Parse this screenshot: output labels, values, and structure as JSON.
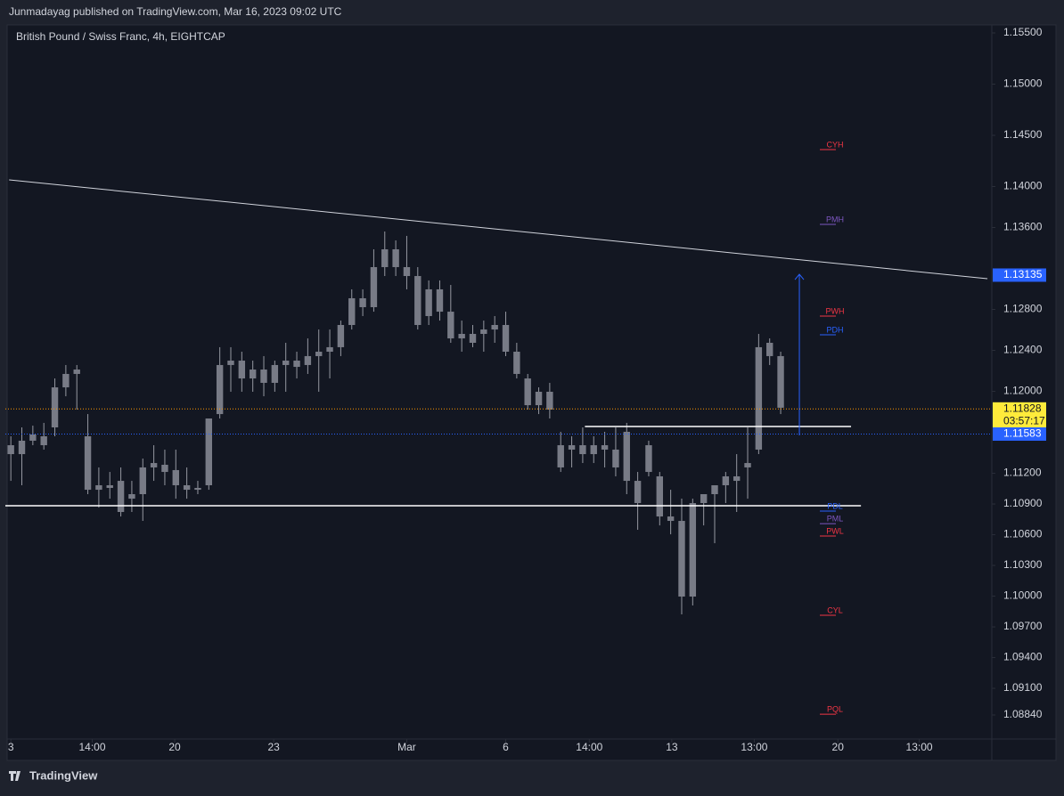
{
  "header": {
    "published": "Junmadayag published on TradingView.com, Mar 16, 2023 09:02 UTC",
    "brand": "TradingView"
  },
  "chart_data": {
    "type": "candlestick",
    "title": "British Pound / Swiss Franc, 4h, EIGHTCAP",
    "color": "#787b86",
    "wick_color": "#9598a1",
    "background": "#131722",
    "open": [
      1.11474,
      1.11387,
      1.11518,
      1.11561,
      1.11648,
      1.12039,
      1.1217,
      1.11561,
      1.11039,
      1.11083,
      1.11126,
      1.10952,
      1.10996,
      1.11257,
      1.11283,
      1.11231,
      1.11083,
      1.11039,
      1.11083,
      1.11778,
      1.12257,
      1.123,
      1.12126,
      1.12213,
      1.12083,
      1.12257,
      1.123,
      1.12257,
      1.12344,
      1.12387,
      1.12431,
      1.12648,
      1.12909,
      1.12822,
      1.13213,
      1.13387,
      1.13213,
      1.13126,
      1.12735,
      1.12996,
      1.12778,
      1.12517,
      1.12561,
      1.12561,
      1.12604,
      1.12648,
      1.12387,
      1.12126,
      1.11865,
      1.11996,
      1.11474,
      1.11431,
      1.11474,
      1.11387,
      1.11474,
      1.11431,
      1.11605,
      1.11126,
      1.11213,
      1.1117,
      1.10778,
      1.10735,
      1.09996,
      1.10909,
      1.10996,
      1.11083,
      1.1117,
      1.11257,
      1.11431,
      1.12474,
      1.12344
    ],
    "high": [
      1.11561,
      1.11648,
      1.11665,
      1.11692,
      1.12126,
      1.12257,
      1.12257,
      1.11778,
      1.11257,
      1.11213,
      1.11257,
      1.11126,
      1.11344,
      1.11474,
      1.11431,
      1.11431,
      1.11257,
      1.11126,
      1.11735,
      1.12431,
      1.12431,
      1.12387,
      1.123,
      1.12344,
      1.123,
      1.12474,
      1.12387,
      1.12517,
      1.12604,
      1.12604,
      1.12691,
      1.12996,
      1.12996,
      1.13387,
      1.13561,
      1.13474,
      1.13518,
      1.13213,
      1.13083,
      1.13083,
      1.13039,
      1.12691,
      1.12648,
      1.12691,
      1.12735,
      1.12778,
      1.12474,
      1.1217,
      1.12039,
      1.12083,
      1.11605,
      1.11561,
      1.11648,
      1.11561,
      1.11605,
      1.11648,
      1.11692,
      1.11213,
      1.11518,
      1.11213,
      1.11039,
      1.10952,
      1.10952,
      1.10952,
      1.11083,
      1.11213,
      1.11387,
      1.11648,
      1.12561,
      1.12517,
      1.12387
    ],
    "low": [
      1.11126,
      1.11083,
      1.11474,
      1.11431,
      1.11561,
      1.11952,
      1.11822,
      1.10996,
      1.10865,
      1.10952,
      1.10778,
      1.10822,
      1.10735,
      1.11126,
      1.11083,
      1.10952,
      1.10952,
      1.10996,
      1.11039,
      1.11735,
      1.11996,
      1.11996,
      1.11996,
      1.11952,
      1.11996,
      1.11996,
      1.12126,
      1.1217,
      1.11996,
      1.12126,
      1.12344,
      1.12604,
      1.12735,
      1.12778,
      1.13126,
      1.13126,
      1.12996,
      1.12604,
      1.12648,
      1.12691,
      1.12474,
      1.12387,
      1.12431,
      1.12387,
      1.12474,
      1.12344,
      1.12126,
      1.11822,
      1.11778,
      1.11735,
      1.11213,
      1.11257,
      1.113,
      1.113,
      1.11257,
      1.1117,
      1.10996,
      1.10648,
      1.1117,
      1.10691,
      1.10604,
      1.09822,
      1.09909,
      1.10691,
      1.10517,
      1.10909,
      1.10822,
      1.10952,
      1.11387,
      1.12257,
      1.11778
    ],
    "close": [
      1.11387,
      1.11518,
      1.11579,
      1.11474,
      1.12039,
      1.1217,
      1.12213,
      1.11039,
      1.11083,
      1.11057,
      1.10822,
      1.10996,
      1.11257,
      1.113,
      1.11213,
      1.11083,
      1.11039,
      1.11057,
      1.11735,
      1.12257,
      1.123,
      1.12126,
      1.12213,
      1.12083,
      1.12257,
      1.123,
      1.12239,
      1.12344,
      1.12387,
      1.12431,
      1.12648,
      1.12909,
      1.12822,
      1.13213,
      1.13387,
      1.13213,
      1.13126,
      1.12648,
      1.12996,
      1.12778,
      1.12517,
      1.12561,
      1.12474,
      1.12604,
      1.12648,
      1.12387,
      1.1217,
      1.11865,
      1.11996,
      1.11822,
      1.11257,
      1.11474,
      1.11387,
      1.11474,
      1.11431,
      1.11257,
      1.11126,
      1.10909,
      1.11474,
      1.10778,
      1.10735,
      1.09996,
      1.10909,
      1.10996,
      1.11083,
      1.1117,
      1.11126,
      1.113,
      1.12431,
      1.12344,
      1.1184
    ],
    "xlim": [
      -0.5,
      89.2
    ],
    "xticks": [
      {
        "value": 0,
        "label": "3"
      },
      {
        "value": 7.4,
        "label": "14:00"
      },
      {
        "value": 14.9,
        "label": "20"
      },
      {
        "value": 23.9,
        "label": "23"
      },
      {
        "value": 36,
        "label": "Mar"
      },
      {
        "value": 45,
        "label": "6"
      },
      {
        "value": 52.6,
        "label": "14:00"
      },
      {
        "value": 60.1,
        "label": "13"
      },
      {
        "value": 67.6,
        "label": "13:00"
      },
      {
        "value": 75.2,
        "label": "20"
      },
      {
        "value": 82.6,
        "label": "13:00"
      }
    ],
    "ylim": [
      1.08605,
      1.15578
    ],
    "yticks": [
      {
        "value": 1.155,
        "label": "1.15500"
      },
      {
        "value": 1.15,
        "label": "1.15000"
      },
      {
        "value": 1.145,
        "label": "1.14500"
      },
      {
        "value": 1.14,
        "label": "1.14000"
      },
      {
        "value": 1.136,
        "label": "1.13600"
      },
      {
        "value": 1.128,
        "label": "1.12800"
      },
      {
        "value": 1.124,
        "label": "1.12400"
      },
      {
        "value": 1.12,
        "label": "1.12000"
      },
      {
        "value": 1.112,
        "label": "1.11200"
      },
      {
        "value": 1.109,
        "label": "1.10900"
      },
      {
        "value": 1.106,
        "label": "1.10600"
      },
      {
        "value": 1.103,
        "label": "1.10300"
      },
      {
        "value": 1.1,
        "label": "1.10000"
      },
      {
        "value": 1.097,
        "label": "1.09700"
      },
      {
        "value": 1.094,
        "label": "1.09400"
      },
      {
        "value": 1.091,
        "label": "1.09100"
      },
      {
        "value": 1.0884,
        "label": "1.08840"
      }
    ],
    "levels": [
      {
        "label": "CYH",
        "value": 1.14404,
        "color": "#f23645"
      },
      {
        "label": "PMH",
        "value": 1.13674,
        "color": "#7e57c2"
      },
      {
        "label": "PWH",
        "value": 1.12778,
        "color": "#f23645"
      },
      {
        "label": "PDH",
        "value": 1.12596,
        "color": "#2962ff"
      },
      {
        "label": "PDL",
        "value": 1.10874,
        "color": "#2962ff"
      },
      {
        "label": "PML",
        "value": 1.10752,
        "color": "#7e57c2"
      },
      {
        "label": "PWL",
        "value": 1.10631,
        "color": "#f23645"
      },
      {
        "label": "CYL",
        "value": 1.09857,
        "color": "#f23645"
      },
      {
        "label": "PQL",
        "value": 1.08891,
        "color": "#f23645"
      }
    ],
    "lines": [
      {
        "x": [
          -0.16,
          88.8
        ],
        "y": [
          1.14065,
          1.131
        ],
        "color": "#d1d4dc"
      },
      {
        "x": [
          -0.5,
          77.3
        ],
        "y": [
          1.10883,
          1.10883
        ],
        "color": "#ffffff"
      },
      {
        "x": [
          52.2,
          76.4
        ],
        "y": [
          1.11657,
          1.11657
        ],
        "color": "#ffffff"
      }
    ],
    "arrow": {
      "x": 71.7,
      "y": [
        1.1157,
        1.13143
      ],
      "color": "#2962ff"
    },
    "price_labels": [
      {
        "value": 1.13135,
        "color": "#2962ff",
        "text_color": "#ffffff"
      },
      {
        "value": 1.11828,
        "color": "#ffeb3b",
        "text_color": "#131722",
        "countdown": "03:57:17",
        "line_color": "#ff9800"
      },
      {
        "value": 1.11583,
        "color": "#2962ff",
        "text_color": "#ffffff",
        "line_color": "#2962ff"
      }
    ]
  }
}
